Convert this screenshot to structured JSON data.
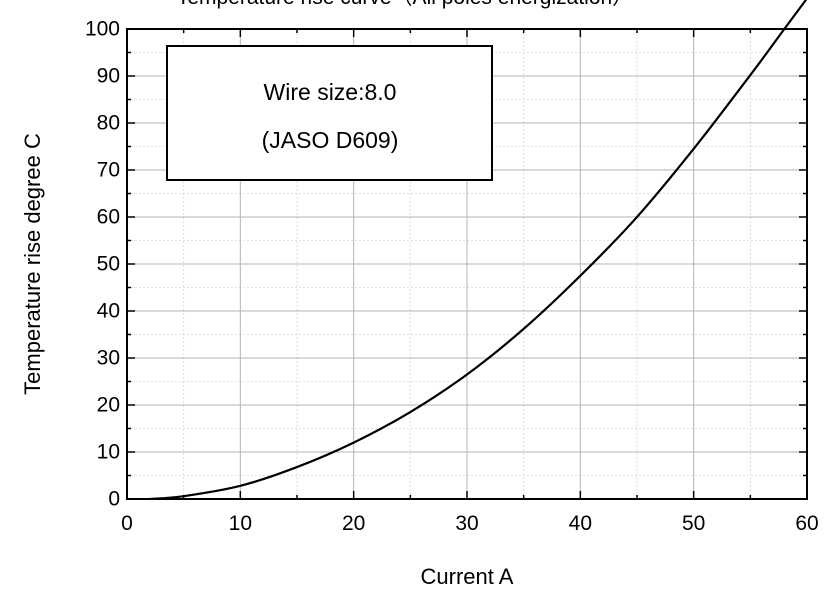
{
  "chart_data": {
    "type": "line",
    "title": "Temperature rise curve（All poles energization）",
    "xlabel": "Current  A",
    "ylabel": "Temperature rise  degree C",
    "xlim": [
      0,
      60
    ],
    "ylim": [
      0,
      100
    ],
    "x_ticks": [
      "0",
      "10",
      "20",
      "30",
      "40",
      "50",
      "60"
    ],
    "y_ticks": [
      "0",
      "10",
      "20",
      "30",
      "40",
      "50",
      "60",
      "70",
      "80",
      "90",
      "100"
    ],
    "grid": true,
    "annotation": {
      "lines": [
        "Wire size:8.0",
        "(JASO D609)"
      ],
      "placement": "top-left"
    },
    "series": [
      {
        "color": "#000000",
        "x": [
          2,
          5,
          10,
          15,
          20,
          25,
          30,
          35,
          40,
          45,
          50,
          55,
          58,
          60
        ],
        "y": [
          0,
          0.6,
          2.8,
          6.8,
          12,
          18.5,
          26.5,
          36.2,
          47.5,
          60,
          74.5,
          90.2,
          100,
          106.5
        ]
      }
    ]
  }
}
